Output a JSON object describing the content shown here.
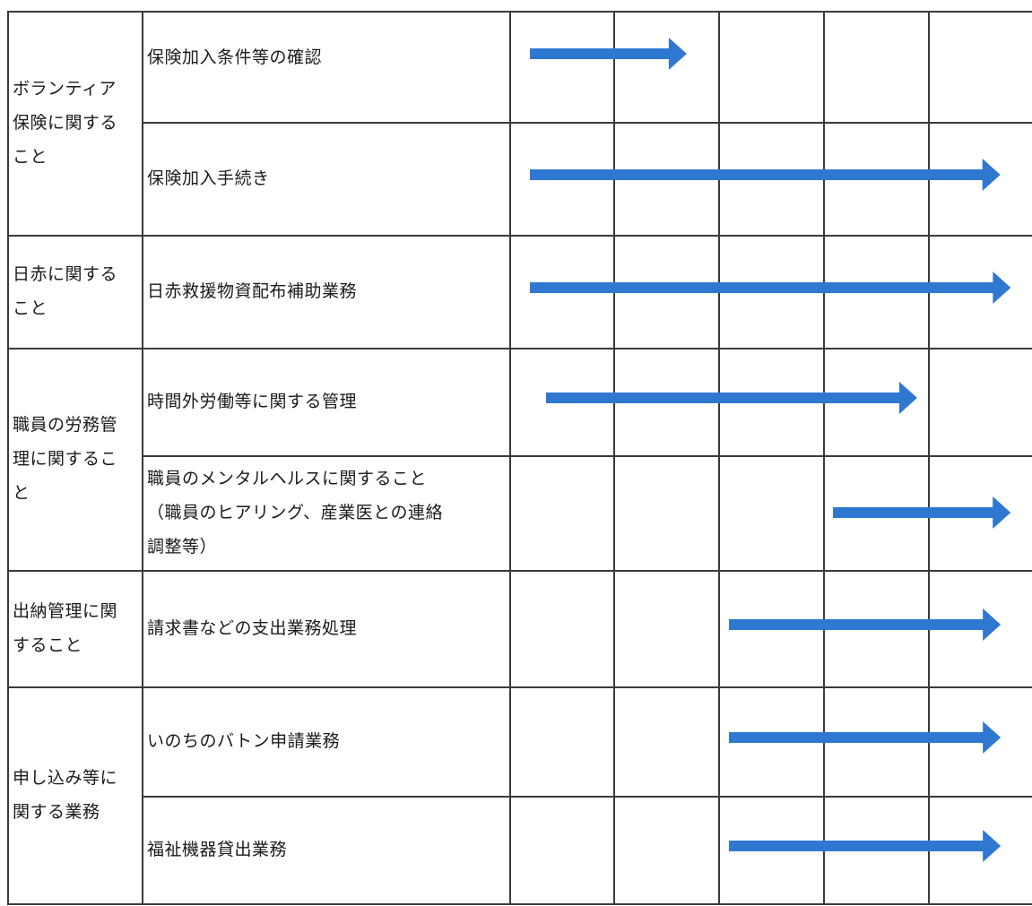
{
  "colors": {
    "arrow": "#2f78d2",
    "grid": "#3a3a3a"
  },
  "rows": [
    {
      "category": [
        "ボランティア",
        "保険に関する",
        "こと"
      ],
      "tasks": [
        {
          "label": [
            "保険加入条件等の確認"
          ],
          "arrow": {
            "start": 0.2,
            "end": 1.7
          }
        },
        {
          "label": [
            "保険加入手続き"
          ],
          "arrow": {
            "start": 0.2,
            "end": 4.7
          }
        }
      ]
    },
    {
      "category": [
        "日赤に関する",
        "こと"
      ],
      "tasks": [
        {
          "label": [
            "日赤救援物資配布補助業務"
          ],
          "arrow": {
            "start": 0.2,
            "end": 4.8
          }
        }
      ]
    },
    {
      "category": [
        "職員の労務管",
        "理に関するこ",
        "と"
      ],
      "tasks": [
        {
          "label": [
            "時間外労働等に関する管理"
          ],
          "arrow": {
            "start": 0.35,
            "end": 3.9
          }
        },
        {
          "label": [
            "職員のメンタルヘルスに関すること",
            "（職員のヒアリング、産業医との連絡",
            "調整等）"
          ],
          "arrow": {
            "start": 3.1,
            "end": 4.8
          }
        }
      ]
    },
    {
      "category": [
        "出納管理に関",
        "すること"
      ],
      "tasks": [
        {
          "label": [
            "請求書などの支出業務処理"
          ],
          "arrow": {
            "start": 2.1,
            "end": 4.7
          }
        }
      ]
    },
    {
      "category": [
        "申し込み等に",
        "関する業務"
      ],
      "tasks": [
        {
          "label": [
            "いのちのバトン申請業務"
          ],
          "arrow": {
            "start": 2.1,
            "end": 4.7
          }
        },
        {
          "label": [
            "福祉機器貸出業務"
          ],
          "arrow": {
            "start": 2.1,
            "end": 4.7
          }
        }
      ]
    }
  ]
}
